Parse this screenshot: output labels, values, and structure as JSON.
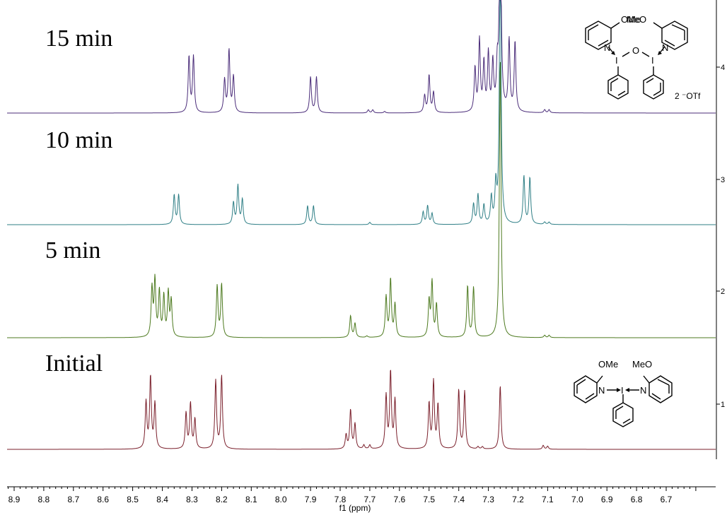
{
  "chart_data": {
    "type": "line",
    "title": "",
    "xlabel": "f1 (ppm)",
    "ylabel": "",
    "xlim": [
      8.9,
      6.7
    ],
    "x_reversed": true,
    "x_ticks": [
      "8.9",
      "8.8",
      "8.7",
      "8.6",
      "8.5",
      "8.4",
      "8.3",
      "8.2",
      "8.1",
      "8.0",
      "7.9",
      "7.8",
      "7.7",
      "7.6",
      "7.5",
      "7.4",
      "7.3",
      "7.2",
      "7.1",
      "7.0",
      "6.9",
      "6.8",
      "6.7"
    ],
    "right_axis_labels": [
      "1",
      "2",
      "3",
      "4"
    ],
    "colors": {
      "initial": "#7a1f2b",
      "5min": "#4d7a1f",
      "10min": "#2f7f86",
      "15min": "#4b2d7a",
      "axis": "#000000"
    },
    "series": [
      {
        "name": "Initial",
        "peaks": [
          {
            "ppm": 8.455,
            "height": 0.6
          },
          {
            "ppm": 8.44,
            "height": 0.92
          },
          {
            "ppm": 8.425,
            "height": 0.58
          },
          {
            "ppm": 8.32,
            "height": 0.46
          },
          {
            "ppm": 8.305,
            "height": 0.58
          },
          {
            "ppm": 8.29,
            "height": 0.38
          },
          {
            "ppm": 8.22,
            "height": 0.88
          },
          {
            "ppm": 8.2,
            "height": 0.94
          },
          {
            "ppm": 7.78,
            "height": 0.18
          },
          {
            "ppm": 7.765,
            "height": 0.5
          },
          {
            "ppm": 7.75,
            "height": 0.32
          },
          {
            "ppm": 7.72,
            "height": 0.05
          },
          {
            "ppm": 7.7,
            "height": 0.05
          },
          {
            "ppm": 7.645,
            "height": 0.68
          },
          {
            "ppm": 7.63,
            "height": 0.98
          },
          {
            "ppm": 7.615,
            "height": 0.62
          },
          {
            "ppm": 7.5,
            "height": 0.58
          },
          {
            "ppm": 7.485,
            "height": 0.86
          },
          {
            "ppm": 7.47,
            "height": 0.56
          },
          {
            "ppm": 7.4,
            "height": 0.76
          },
          {
            "ppm": 7.38,
            "height": 0.74
          },
          {
            "ppm": 7.335,
            "height": 0.03
          },
          {
            "ppm": 7.32,
            "height": 0.03
          },
          {
            "ppm": 7.26,
            "height": 0.82
          },
          {
            "ppm": 7.115,
            "height": 0.05
          },
          {
            "ppm": 7.1,
            "height": 0.04
          }
        ]
      },
      {
        "name": "5 min",
        "peaks": [
          {
            "ppm": 8.435,
            "height": 0.62
          },
          {
            "ppm": 8.425,
            "height": 0.72
          },
          {
            "ppm": 8.41,
            "height": 0.58
          },
          {
            "ppm": 8.395,
            "height": 0.52
          },
          {
            "ppm": 8.38,
            "height": 0.56
          },
          {
            "ppm": 8.37,
            "height": 0.46
          },
          {
            "ppm": 8.215,
            "height": 0.66
          },
          {
            "ppm": 8.2,
            "height": 0.68
          },
          {
            "ppm": 7.765,
            "height": 0.28
          },
          {
            "ppm": 7.75,
            "height": 0.18
          },
          {
            "ppm": 7.71,
            "height": 0.02
          },
          {
            "ppm": 7.645,
            "height": 0.52
          },
          {
            "ppm": 7.63,
            "height": 0.74
          },
          {
            "ppm": 7.615,
            "height": 0.42
          },
          {
            "ppm": 7.5,
            "height": 0.46
          },
          {
            "ppm": 7.49,
            "height": 0.7
          },
          {
            "ppm": 7.475,
            "height": 0.42
          },
          {
            "ppm": 7.37,
            "height": 0.66
          },
          {
            "ppm": 7.35,
            "height": 0.64
          },
          {
            "ppm": 7.26,
            "height": 3.6
          },
          {
            "ppm": 7.11,
            "height": 0.03
          },
          {
            "ppm": 7.095,
            "height": 0.03
          }
        ]
      },
      {
        "name": "10 min",
        "peaks": [
          {
            "ppm": 8.36,
            "height": 0.38
          },
          {
            "ppm": 8.345,
            "height": 0.38
          },
          {
            "ppm": 8.16,
            "height": 0.28
          },
          {
            "ppm": 8.145,
            "height": 0.5
          },
          {
            "ppm": 8.13,
            "height": 0.32
          },
          {
            "ppm": 7.91,
            "height": 0.24
          },
          {
            "ppm": 7.89,
            "height": 0.24
          },
          {
            "ppm": 7.7,
            "height": 0.03
          },
          {
            "ppm": 7.52,
            "height": 0.16
          },
          {
            "ppm": 7.505,
            "height": 0.24
          },
          {
            "ppm": 7.49,
            "height": 0.14
          },
          {
            "ppm": 7.35,
            "height": 0.26
          },
          {
            "ppm": 7.335,
            "height": 0.38
          },
          {
            "ppm": 7.315,
            "height": 0.24
          },
          {
            "ppm": 7.29,
            "height": 0.34
          },
          {
            "ppm": 7.275,
            "height": 0.48
          },
          {
            "ppm": 7.26,
            "height": 3.5
          },
          {
            "ppm": 7.18,
            "height": 0.62
          },
          {
            "ppm": 7.16,
            "height": 0.6
          },
          {
            "ppm": 7.11,
            "height": 0.03
          },
          {
            "ppm": 7.095,
            "height": 0.03
          }
        ]
      },
      {
        "name": "15 min",
        "peaks": [
          {
            "ppm": 8.31,
            "height": 0.72
          },
          {
            "ppm": 8.295,
            "height": 0.72
          },
          {
            "ppm": 8.19,
            "height": 0.42
          },
          {
            "ppm": 8.175,
            "height": 0.8
          },
          {
            "ppm": 8.16,
            "height": 0.46
          },
          {
            "ppm": 7.9,
            "height": 0.46
          },
          {
            "ppm": 7.88,
            "height": 0.46
          },
          {
            "ppm": 7.705,
            "height": 0.04
          },
          {
            "ppm": 7.69,
            "height": 0.04
          },
          {
            "ppm": 7.65,
            "height": 0.02
          },
          {
            "ppm": 7.515,
            "height": 0.22
          },
          {
            "ppm": 7.5,
            "height": 0.48
          },
          {
            "ppm": 7.485,
            "height": 0.26
          },
          {
            "ppm": 7.345,
            "height": 0.56
          },
          {
            "ppm": 7.33,
            "height": 0.92
          },
          {
            "ppm": 7.315,
            "height": 0.62
          },
          {
            "ppm": 7.3,
            "height": 0.74
          },
          {
            "ppm": 7.285,
            "height": 0.62
          },
          {
            "ppm": 7.27,
            "height": 0.5
          },
          {
            "ppm": 7.26,
            "height": 3.2
          },
          {
            "ppm": 7.23,
            "height": 0.92
          },
          {
            "ppm": 7.21,
            "height": 0.9
          },
          {
            "ppm": 7.11,
            "height": 0.04
          },
          {
            "ppm": 7.095,
            "height": 0.04
          }
        ]
      }
    ]
  },
  "labels": {
    "initial": "Initial",
    "t5": "5 min",
    "t10": "10 min",
    "t15": "15 min"
  },
  "structures": {
    "top": {
      "ome_left": "OMe",
      "meo_right": "MeO",
      "n_left": "N",
      "n_right": "N",
      "iodine_left": "I",
      "oxygen": "O",
      "iodine_right": "I",
      "counterion": "2 ⁻OTf"
    },
    "bottom": {
      "ome_left": "OMe",
      "meo_right": "MeO",
      "n_left": "N",
      "n_right": "N",
      "iodine": "I"
    }
  }
}
